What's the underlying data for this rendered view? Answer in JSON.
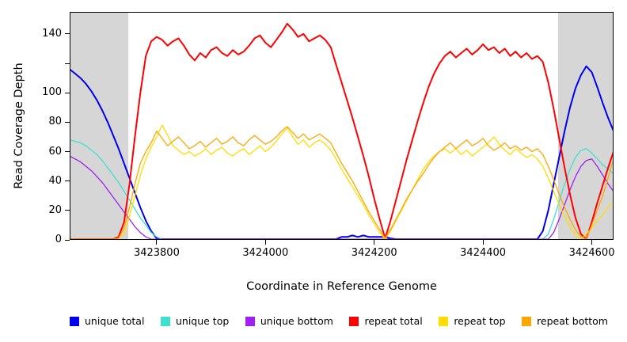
{
  "chart_data": {
    "type": "line",
    "title": "",
    "xlabel": "Coordinate in Reference Genome",
    "ylabel": "Read Coverage Depth",
    "xlim": [
      3423640,
      3424640
    ],
    "ylim": [
      0,
      155
    ],
    "grid": false,
    "legend_position": "bottom",
    "background_color": "#ffffff",
    "shaded_region_color": "#d6d6d6",
    "shaded_regions": [
      {
        "x0": 3423640,
        "x1": 3423748
      },
      {
        "x0": 3424538,
        "x1": 3424640
      }
    ],
    "x_ticks": [
      {
        "value": 3423800,
        "label": "3423800"
      },
      {
        "value": 3424000,
        "label": "3424000"
      },
      {
        "value": 3424200,
        "label": "3424200"
      },
      {
        "value": 3424400,
        "label": "3424400"
      },
      {
        "value": 3424600,
        "label": "3424600"
      }
    ],
    "y_ticks": [
      {
        "value": 0,
        "label": "0"
      },
      {
        "value": 20,
        "label": "20"
      },
      {
        "value": 40,
        "label": "40"
      },
      {
        "value": 60,
        "label": "60"
      },
      {
        "value": 80,
        "label": "80"
      },
      {
        "value": 100,
        "label": "100"
      },
      {
        "value": 120,
        "label": ""
      },
      {
        "value": 140,
        "label": "140"
      }
    ],
    "x_start": 3423640,
    "x_step": 10,
    "series": [
      {
        "name": "unique-total",
        "label": "unique total",
        "color": "#0000ee",
        "lw": 2,
        "values": [
          116,
          113,
          110,
          106,
          101,
          95,
          88,
          80,
          71,
          62,
          52,
          42,
          32,
          22,
          13,
          6,
          1,
          0,
          0,
          0,
          0,
          0,
          0,
          0,
          0,
          0,
          0,
          0,
          0,
          0,
          0,
          0,
          0,
          0,
          0,
          0,
          0,
          0,
          0,
          0,
          0,
          0,
          0,
          0,
          0,
          0,
          0,
          0,
          0,
          0,
          2,
          2,
          3,
          2,
          3,
          2,
          2,
          2,
          2,
          1,
          0,
          0,
          0,
          0,
          0,
          0,
          0,
          0,
          0,
          0,
          0,
          0,
          0,
          0,
          0,
          0,
          0,
          0,
          0,
          0,
          0,
          0,
          0,
          0,
          0,
          0,
          0,
          6,
          20,
          38,
          56,
          74,
          90,
          103,
          112,
          118,
          114,
          104,
          93,
          83,
          74
        ]
      },
      {
        "name": "unique-top",
        "label": "unique top",
        "color": "#40e0d0",
        "lw": 1.3,
        "values": [
          68,
          67,
          66,
          64,
          61,
          58,
          54,
          49,
          44,
          39,
          33,
          27,
          21,
          15,
          10,
          5,
          2,
          0,
          0,
          0,
          0,
          0,
          0,
          0,
          0,
          0,
          0,
          0,
          0,
          0,
          0,
          0,
          0,
          0,
          0,
          0,
          0,
          0,
          0,
          0,
          0,
          0,
          0,
          0,
          0,
          0,
          0,
          0,
          0,
          0,
          0,
          0,
          0,
          0,
          0,
          0,
          0,
          0,
          0,
          0,
          0,
          0,
          0,
          0,
          0,
          0,
          0,
          0,
          0,
          0,
          0,
          0,
          0,
          0,
          0,
          0,
          0,
          0,
          0,
          0,
          0,
          0,
          0,
          0,
          0,
          0,
          0,
          0,
          4,
          14,
          26,
          38,
          48,
          56,
          61,
          62,
          59,
          55,
          51,
          48,
          45
        ]
      },
      {
        "name": "unique-bottom",
        "label": "unique bottom",
        "color": "#a020f0",
        "lw": 1.3,
        "values": [
          57,
          55,
          53,
          50,
          47,
          43,
          39,
          34,
          29,
          24,
          19,
          14,
          9,
          5,
          2,
          0,
          0,
          0,
          0,
          0,
          0,
          0,
          0,
          0,
          0,
          0,
          0,
          0,
          0,
          0,
          0,
          0,
          0,
          0,
          0,
          0,
          0,
          0,
          0,
          0,
          0,
          0,
          0,
          0,
          0,
          0,
          0,
          0,
          0,
          0,
          0,
          0,
          0,
          0,
          0,
          0,
          0,
          0,
          0,
          0,
          0,
          0,
          0,
          0,
          0,
          0,
          0,
          0,
          0,
          0,
          0,
          0,
          0,
          0,
          0,
          0,
          0,
          0,
          0,
          0,
          0,
          0,
          0,
          0,
          0,
          0,
          0,
          0,
          0,
          5,
          14,
          24,
          34,
          43,
          50,
          54,
          55,
          50,
          44,
          38,
          33
        ]
      },
      {
        "name": "repeat-total",
        "label": "repeat total",
        "color": "#ff0000",
        "lw": 2,
        "values": [
          0,
          0,
          0,
          0,
          0,
          0,
          0,
          0,
          0,
          2,
          12,
          38,
          70,
          100,
          125,
          135,
          138,
          136,
          132,
          135,
          137,
          132,
          126,
          122,
          127,
          124,
          129,
          131,
          127,
          125,
          129,
          126,
          128,
          132,
          137,
          139,
          134,
          131,
          136,
          141,
          147,
          143,
          138,
          140,
          135,
          137,
          139,
          136,
          131,
          119,
          107,
          95,
          83,
          70,
          57,
          43,
          28,
          14,
          1,
          13,
          27,
          41,
          55,
          68,
          81,
          93,
          104,
          113,
          120,
          125,
          128,
          124,
          127,
          130,
          126,
          129,
          133,
          129,
          131,
          127,
          130,
          125,
          128,
          124,
          127,
          123,
          125,
          121,
          107,
          89,
          69,
          49,
          31,
          15,
          4,
          0,
          12,
          25,
          37,
          49,
          60
        ]
      },
      {
        "name": "repeat-top",
        "label": "repeat top",
        "color": "#ffdd00",
        "lw": 1.3,
        "values": [
          0,
          0,
          0,
          0,
          0,
          0,
          0,
          0,
          0,
          1,
          4,
          16,
          30,
          44,
          55,
          63,
          70,
          78,
          71,
          64,
          61,
          58,
          60,
          57,
          59,
          62,
          58,
          61,
          63,
          59,
          57,
          60,
          62,
          58,
          61,
          64,
          60,
          63,
          67,
          72,
          76,
          70,
          65,
          68,
          63,
          66,
          68,
          65,
          61,
          55,
          48,
          42,
          36,
          30,
          24,
          17,
          11,
          5,
          0,
          6,
          13,
          20,
          27,
          34,
          41,
          48,
          53,
          57,
          60,
          62,
          59,
          62,
          58,
          61,
          57,
          60,
          63,
          66,
          70,
          65,
          61,
          58,
          62,
          59,
          56,
          58,
          55,
          50,
          42,
          33,
          24,
          16,
          9,
          3,
          0,
          4,
          8,
          13,
          17,
          22,
          26
        ]
      },
      {
        "name": "repeat-bottom",
        "label": "repeat bottom",
        "color": "#ffa500",
        "lw": 1.3,
        "values": [
          0,
          0,
          0,
          0,
          0,
          0,
          0,
          0,
          0,
          1,
          8,
          22,
          38,
          52,
          60,
          66,
          74,
          69,
          64,
          67,
          70,
          66,
          62,
          64,
          67,
          63,
          66,
          69,
          65,
          67,
          70,
          66,
          64,
          68,
          71,
          68,
          65,
          67,
          70,
          74,
          77,
          73,
          69,
          72,
          68,
          70,
          72,
          69,
          66,
          59,
          52,
          46,
          40,
          33,
          26,
          19,
          13,
          7,
          1,
          7,
          14,
          21,
          28,
          34,
          40,
          45,
          51,
          56,
          60,
          63,
          66,
          62,
          65,
          68,
          64,
          66,
          69,
          64,
          61,
          63,
          66,
          62,
          64,
          61,
          63,
          60,
          62,
          58,
          50,
          41,
          31,
          22,
          14,
          7,
          2,
          0,
          10,
          20,
          30,
          42,
          55
        ]
      }
    ]
  }
}
